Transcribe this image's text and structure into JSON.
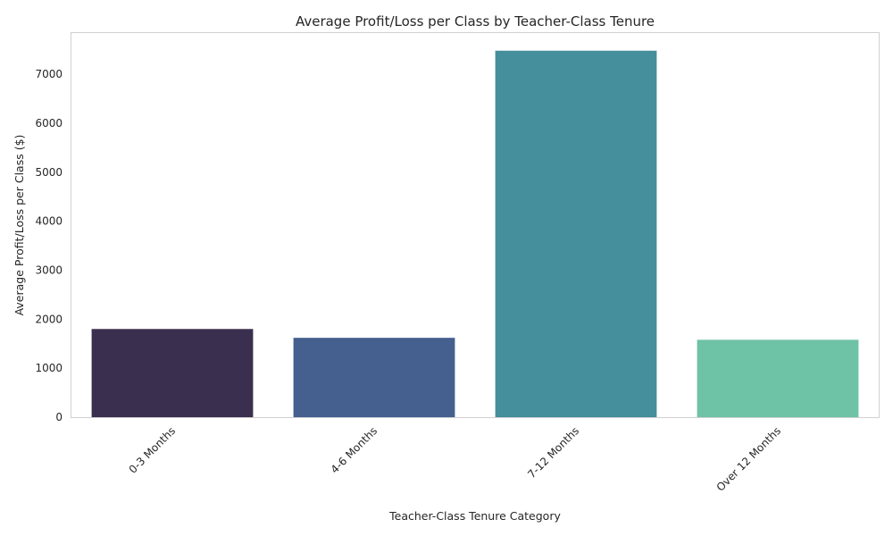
{
  "chart_data": {
    "type": "bar",
    "title": "Average Profit/Loss per Class by Teacher-Class Tenure",
    "xlabel": "Teacher-Class Tenure Category",
    "ylabel": "Average Profit/Loss per Class ($)",
    "categories": [
      "0-3 Months",
      "4-6 Months",
      "7-12 Months",
      "Over 12 Months"
    ],
    "values": [
      1800,
      1620,
      7480,
      1580
    ],
    "colors": [
      "#3b2f4f",
      "#455f8f",
      "#448f9b",
      "#6ec2a5"
    ],
    "ylim": [
      0,
      7840
    ],
    "yticks": [
      0,
      1000,
      2000,
      3000,
      4000,
      5000,
      6000,
      7000
    ],
    "grid": false,
    "legend": "none"
  }
}
